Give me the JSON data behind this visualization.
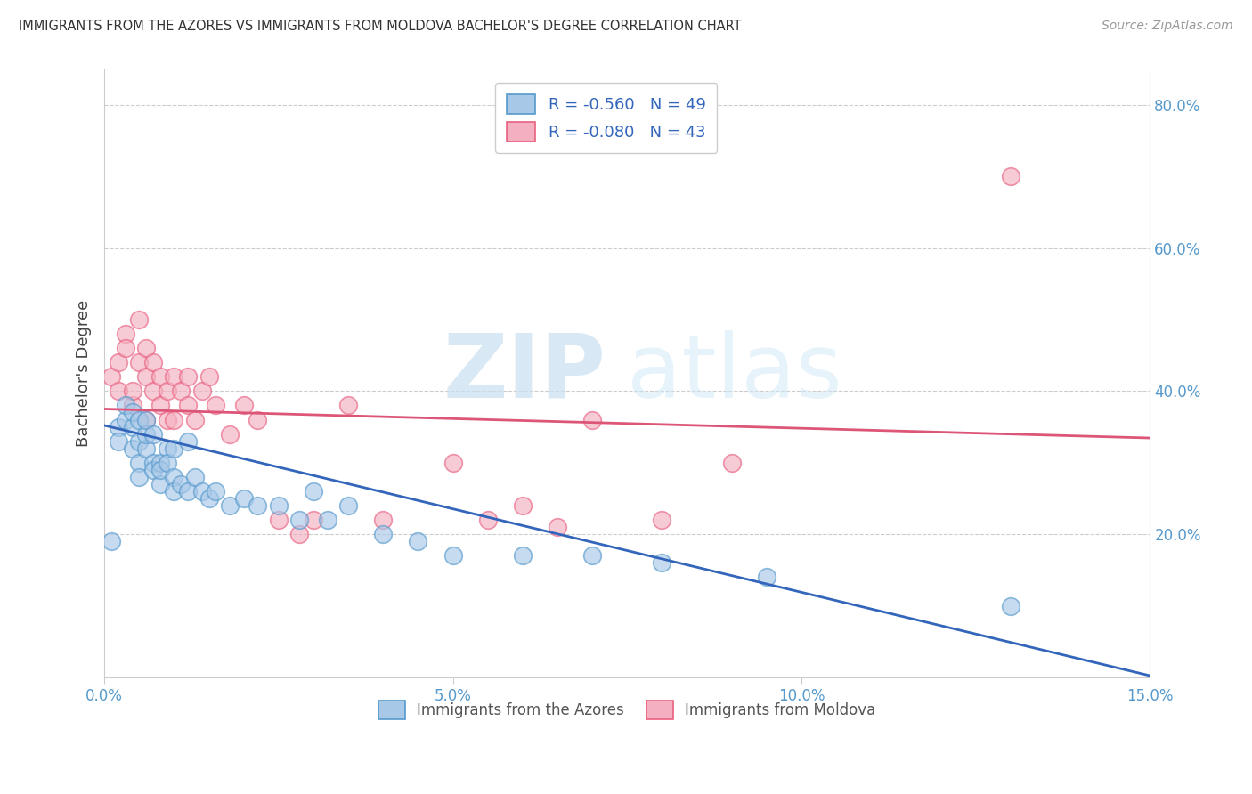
{
  "title": "IMMIGRANTS FROM THE AZORES VS IMMIGRANTS FROM MOLDOVA BACHELOR'S DEGREE CORRELATION CHART",
  "source": "Source: ZipAtlas.com",
  "ylabel": "Bachelor's Degree",
  "xlim": [
    0.0,
    0.15
  ],
  "ylim": [
    0.0,
    0.85
  ],
  "x_ticks": [
    0.0,
    0.05,
    0.1,
    0.15
  ],
  "x_tick_labels": [
    "0.0%",
    "5.0%",
    "10.0%",
    "15.0%"
  ],
  "y_ticks": [
    0.0,
    0.2,
    0.4,
    0.6,
    0.8
  ],
  "y_tick_labels": [
    "",
    "20.0%",
    "40.0%",
    "60.0%",
    "80.0%"
  ],
  "azores_color": "#a8c8e8",
  "moldova_color": "#f4b0c0",
  "azores_edge_color": "#5599cc",
  "moldova_edge_color": "#e86080",
  "azores_line_color": "#3366bb",
  "moldova_line_color": "#dd5577",
  "legend_azores_label": "R = -0.560   N = 49",
  "legend_moldova_label": "R = -0.080   N = 43",
  "legend_bottom_azores": "Immigrants from the Azores",
  "legend_bottom_moldova": "Immigrants from Moldova",
  "watermark_zip": "ZIP",
  "watermark_atlas": "atlas",
  "azores_x": [
    0.001,
    0.002,
    0.002,
    0.003,
    0.003,
    0.004,
    0.004,
    0.004,
    0.005,
    0.005,
    0.005,
    0.005,
    0.006,
    0.006,
    0.006,
    0.007,
    0.007,
    0.007,
    0.008,
    0.008,
    0.008,
    0.009,
    0.009,
    0.01,
    0.01,
    0.01,
    0.011,
    0.012,
    0.012,
    0.013,
    0.014,
    0.015,
    0.016,
    0.018,
    0.02,
    0.022,
    0.025,
    0.028,
    0.03,
    0.032,
    0.035,
    0.04,
    0.045,
    0.05,
    0.06,
    0.07,
    0.08,
    0.095,
    0.13
  ],
  "azores_y": [
    0.19,
    0.35,
    0.33,
    0.36,
    0.38,
    0.32,
    0.35,
    0.37,
    0.3,
    0.36,
    0.33,
    0.28,
    0.32,
    0.34,
    0.36,
    0.3,
    0.29,
    0.34,
    0.27,
    0.3,
    0.29,
    0.32,
    0.3,
    0.28,
    0.26,
    0.32,
    0.27,
    0.33,
    0.26,
    0.28,
    0.26,
    0.25,
    0.26,
    0.24,
    0.25,
    0.24,
    0.24,
    0.22,
    0.26,
    0.22,
    0.24,
    0.2,
    0.19,
    0.17,
    0.17,
    0.17,
    0.16,
    0.14,
    0.1
  ],
  "moldova_x": [
    0.001,
    0.002,
    0.002,
    0.003,
    0.003,
    0.004,
    0.004,
    0.005,
    0.005,
    0.006,
    0.006,
    0.006,
    0.007,
    0.007,
    0.008,
    0.008,
    0.009,
    0.009,
    0.01,
    0.01,
    0.011,
    0.012,
    0.012,
    0.013,
    0.014,
    0.015,
    0.016,
    0.018,
    0.02,
    0.022,
    0.025,
    0.028,
    0.03,
    0.035,
    0.04,
    0.05,
    0.055,
    0.06,
    0.065,
    0.07,
    0.08,
    0.09,
    0.13
  ],
  "moldova_y": [
    0.42,
    0.44,
    0.4,
    0.48,
    0.46,
    0.38,
    0.4,
    0.44,
    0.5,
    0.42,
    0.46,
    0.36,
    0.4,
    0.44,
    0.38,
    0.42,
    0.36,
    0.4,
    0.42,
    0.36,
    0.4,
    0.42,
    0.38,
    0.36,
    0.4,
    0.42,
    0.38,
    0.34,
    0.38,
    0.36,
    0.22,
    0.2,
    0.22,
    0.38,
    0.22,
    0.3,
    0.22,
    0.24,
    0.21,
    0.36,
    0.22,
    0.3,
    0.7
  ]
}
